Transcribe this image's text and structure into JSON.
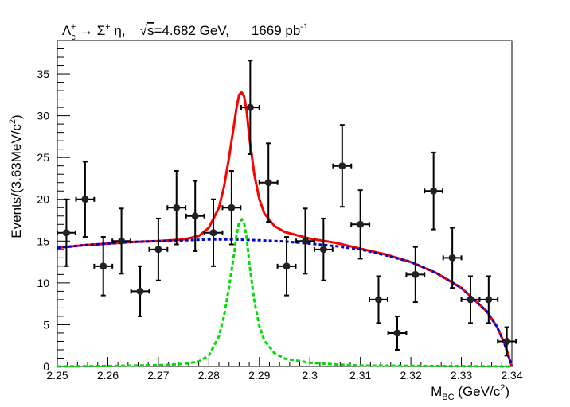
{
  "chart_data": {
    "type": "scatter",
    "title_parts": {
      "lambda": "Λ",
      "lambda_sub": "c",
      "lambda_sup": "+",
      "arrow": " → Σ",
      "sigma_sup": "+",
      "eta": " η,",
      "sqrt_sign": "√",
      "sqrt_s": "s",
      "energy": "=4.682 GeV,",
      "lumi": "1669 pb",
      "lumi_sup": "-1"
    },
    "ylabel_parts": {
      "main": "Events/(3.63MeV/c",
      "sup": "2",
      "close": ")"
    },
    "xlabel_parts": {
      "main": "M",
      "sub": "BC",
      "unit": " (GeV/c",
      "sup": "2",
      "close": ")"
    },
    "xlim": [
      2.25,
      2.34
    ],
    "ylim": [
      0,
      39
    ],
    "x_ticks": [
      {
        "v": 2.25,
        "label": "2.25"
      },
      {
        "v": 2.26,
        "label": "2.26"
      },
      {
        "v": 2.27,
        "label": "2.27"
      },
      {
        "v": 2.28,
        "label": "2.28"
      },
      {
        "v": 2.29,
        "label": "2.29"
      },
      {
        "v": 2.3,
        "label": "2.3"
      },
      {
        "v": 2.31,
        "label": "2.31"
      },
      {
        "v": 2.32,
        "label": "2.32"
      },
      {
        "v": 2.33,
        "label": "2.33"
      },
      {
        "v": 2.34,
        "label": "2.34"
      }
    ],
    "y_ticks": [
      {
        "v": 0,
        "label": "0"
      },
      {
        "v": 5,
        "label": "5"
      },
      {
        "v": 10,
        "label": "10"
      },
      {
        "v": 15,
        "label": "15"
      },
      {
        "v": 20,
        "label": "20"
      },
      {
        "v": 25,
        "label": "25"
      },
      {
        "v": 30,
        "label": "30"
      },
      {
        "v": 35,
        "label": "35"
      }
    ],
    "bin_halfwidth": 0.0018,
    "points": [
      {
        "x": 2.2518,
        "y": 16,
        "err": 4.0
      },
      {
        "x": 2.2555,
        "y": 20,
        "err": 4.5
      },
      {
        "x": 2.2591,
        "y": 12,
        "err": 3.5
      },
      {
        "x": 2.2627,
        "y": 15,
        "err": 3.9
      },
      {
        "x": 2.2664,
        "y": 9,
        "err": 3.0
      },
      {
        "x": 2.27,
        "y": 14,
        "err": 3.7
      },
      {
        "x": 2.2736,
        "y": 19,
        "err": 4.4
      },
      {
        "x": 2.2773,
        "y": 18,
        "err": 4.2
      },
      {
        "x": 2.2809,
        "y": 16,
        "err": 4.0
      },
      {
        "x": 2.2845,
        "y": 19,
        "err": 4.4
      },
      {
        "x": 2.2882,
        "y": 31,
        "err": 5.6
      },
      {
        "x": 2.2918,
        "y": 22,
        "err": 4.7
      },
      {
        "x": 2.2954,
        "y": 12,
        "err": 3.5
      },
      {
        "x": 2.2991,
        "y": 15,
        "err": 3.9
      },
      {
        "x": 2.3027,
        "y": 14,
        "err": 3.7
      },
      {
        "x": 2.3064,
        "y": 24,
        "err": 4.9
      },
      {
        "x": 2.31,
        "y": 17,
        "err": 4.1
      },
      {
        "x": 2.3136,
        "y": 8,
        "err": 2.8
      },
      {
        "x": 2.3173,
        "y": 4,
        "err": 2.0
      },
      {
        "x": 2.3209,
        "y": 11,
        "err": 3.3
      },
      {
        "x": 2.3245,
        "y": 21,
        "err": 4.6
      },
      {
        "x": 2.3282,
        "y": 13,
        "err": 3.6
      },
      {
        "x": 2.3318,
        "y": 8,
        "err": 2.8
      },
      {
        "x": 2.3354,
        "y": 8,
        "err": 2.8
      },
      {
        "x": 2.339,
        "y": 3,
        "err": 1.7
      }
    ],
    "curves": [
      {
        "role": "total",
        "color": "#ff0000",
        "dash": "",
        "x": [
          2.25,
          2.255,
          2.26,
          2.265,
          2.27,
          2.275,
          2.278,
          2.28,
          2.282,
          2.283,
          2.284,
          2.285,
          2.2855,
          2.286,
          2.2865,
          2.287,
          2.2875,
          2.288,
          2.289,
          2.29,
          2.291,
          2.293,
          2.295,
          2.3,
          2.305,
          2.31,
          2.315,
          2.32,
          2.325,
          2.33,
          2.335,
          2.337,
          2.3385,
          2.34
        ],
        "y": [
          14.2,
          14.5,
          14.7,
          14.9,
          15.0,
          15.2,
          15.6,
          16.6,
          19.0,
          21.5,
          25.0,
          29.0,
          31.0,
          32.5,
          32.8,
          32.3,
          30.5,
          27.5,
          23.0,
          20.0,
          18.3,
          16.8,
          16.1,
          15.3,
          14.8,
          14.1,
          13.4,
          12.5,
          11.2,
          9.4,
          6.6,
          4.8,
          2.8,
          0
        ]
      },
      {
        "role": "background",
        "color": "#0000cc",
        "dash": "4,3",
        "x": [
          2.25,
          2.255,
          2.26,
          2.265,
          2.27,
          2.275,
          2.28,
          2.285,
          2.29,
          2.295,
          2.3,
          2.305,
          2.31,
          2.315,
          2.32,
          2.325,
          2.33,
          2.335,
          2.337,
          2.3385,
          2.34
        ],
        "y": [
          14.2,
          14.5,
          14.7,
          14.9,
          15.0,
          15.1,
          15.2,
          15.2,
          15.1,
          14.95,
          14.7,
          14.4,
          14.0,
          13.3,
          12.5,
          11.2,
          9.4,
          6.6,
          4.8,
          2.8,
          0
        ]
      },
      {
        "role": "signal",
        "color": "#00dd00",
        "dash": "5,3",
        "x": [
          2.25,
          2.26,
          2.27,
          2.275,
          2.278,
          2.28,
          2.282,
          2.283,
          2.284,
          2.285,
          2.2855,
          2.286,
          2.2865,
          2.287,
          2.2875,
          2.288,
          2.289,
          2.29,
          2.291,
          2.293,
          2.295,
          2.3,
          2.305,
          2.31,
          2.34
        ],
        "y": [
          0,
          0.05,
          0.15,
          0.3,
          0.6,
          1.3,
          3.6,
          6.0,
          9.5,
          13.5,
          15.8,
          17.3,
          17.6,
          17.1,
          15.4,
          12.4,
          7.9,
          4.8,
          3.1,
          1.6,
          0.95,
          0.45,
          0.25,
          0.1,
          0
        ]
      }
    ]
  }
}
